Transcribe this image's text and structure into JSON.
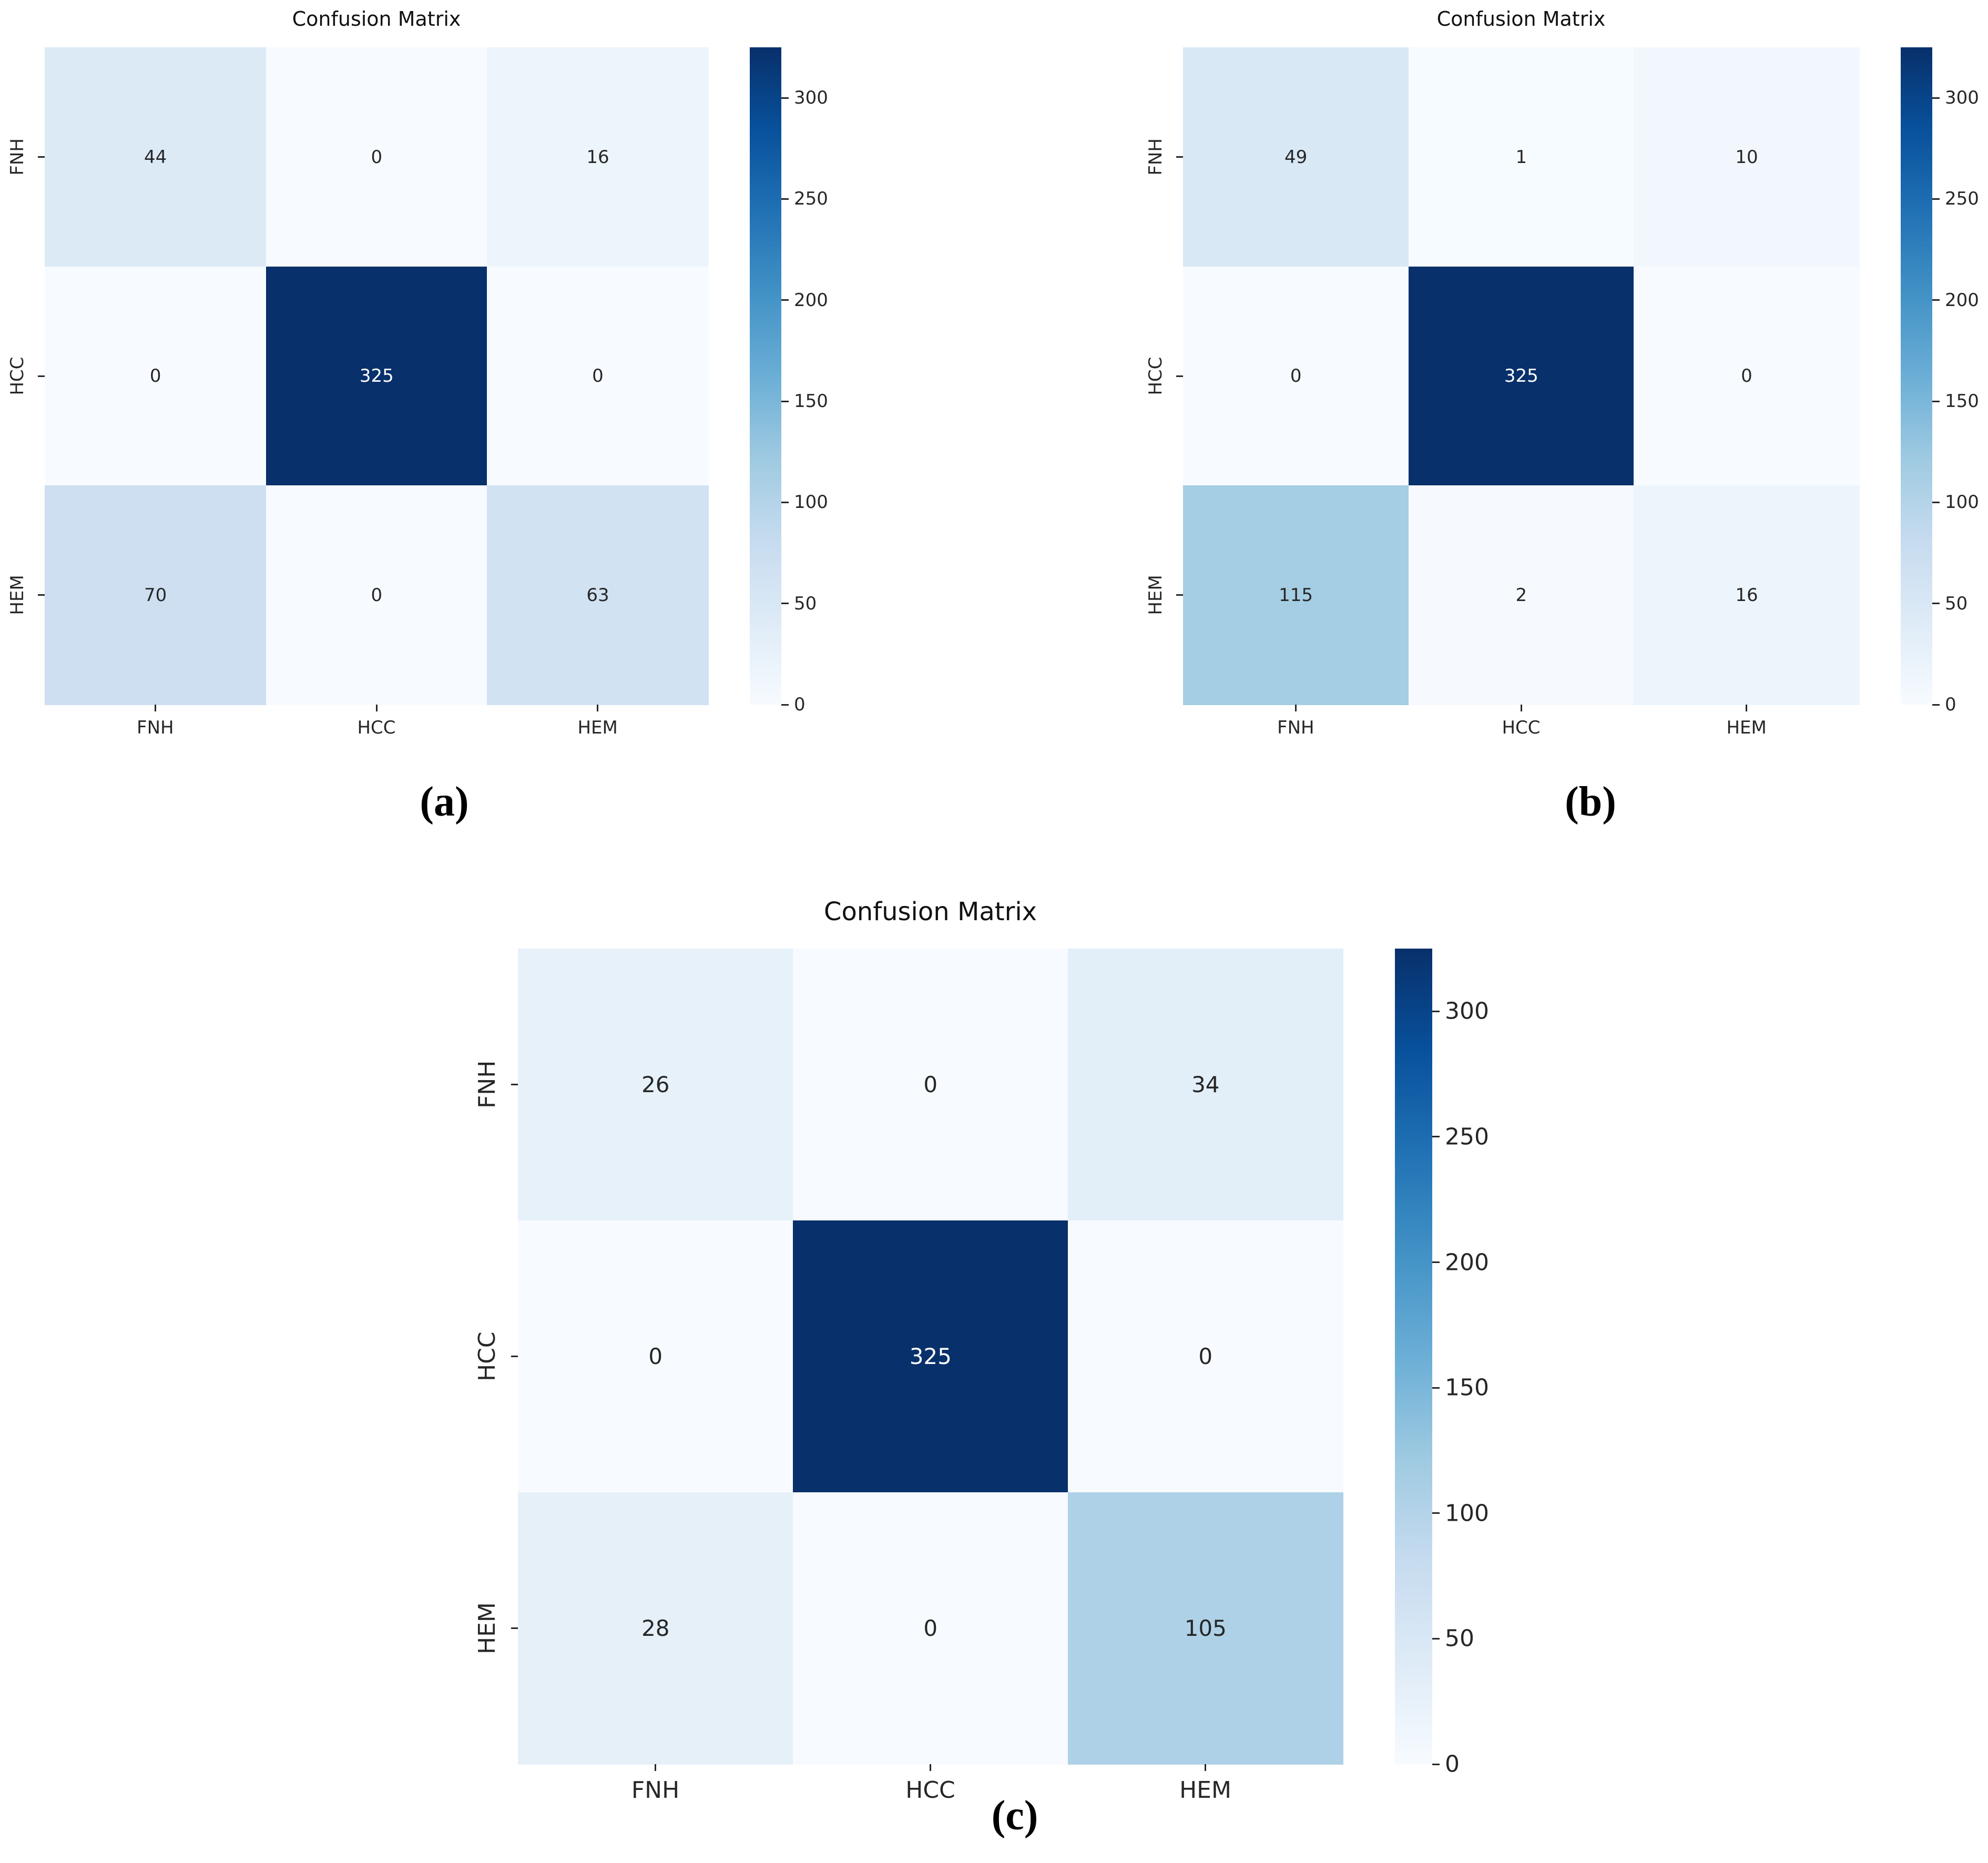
{
  "page": {
    "background": "#ffffff"
  },
  "colors": {
    "colormap": "Blues",
    "colormap_min": "#f7fbff",
    "colormap_max": "#08306b",
    "annotation_dark": "#262626",
    "annotation_light": "#ffffff",
    "axis_text": "#262626",
    "title_text": "#111111"
  },
  "chart_data": [
    {
      "type": "heatmap",
      "panel": "a",
      "caption": "(a)",
      "title": "Confusion Matrix",
      "x_categories": [
        "FNH",
        "HCC",
        "HEM"
      ],
      "y_categories": [
        "FNH",
        "HCC",
        "HEM"
      ],
      "values": [
        [
          44,
          0,
          16
        ],
        [
          0,
          325,
          0
        ],
        [
          70,
          0,
          63
        ]
      ],
      "vmin": 0,
      "vmax": 325,
      "colormap": "Blues",
      "colorbar_ticks": [
        0,
        50,
        100,
        150,
        200,
        250,
        300
      ],
      "legend_position": "right",
      "grid": false
    },
    {
      "type": "heatmap",
      "panel": "b",
      "caption": "(b)",
      "title": "Confusion Matrix",
      "x_categories": [
        "FNH",
        "HCC",
        "HEM"
      ],
      "y_categories": [
        "FNH",
        "HCC",
        "HEM"
      ],
      "values": [
        [
          49,
          1,
          10
        ],
        [
          0,
          325,
          0
        ],
        [
          115,
          2,
          16
        ]
      ],
      "vmin": 0,
      "vmax": 325,
      "colormap": "Blues",
      "colorbar_ticks": [
        0,
        50,
        100,
        150,
        200,
        250,
        300
      ],
      "legend_position": "right",
      "grid": false
    },
    {
      "type": "heatmap",
      "panel": "c",
      "caption": "(c)",
      "title": "Confusion Matrix",
      "x_categories": [
        "FNH",
        "HCC",
        "HEM"
      ],
      "y_categories": [
        "FNH",
        "HCC",
        "HEM"
      ],
      "values": [
        [
          26,
          0,
          34
        ],
        [
          0,
          325,
          0
        ],
        [
          28,
          0,
          105
        ]
      ],
      "vmin": 0,
      "vmax": 325,
      "colormap": "Blues",
      "colorbar_ticks": [
        0,
        50,
        100,
        150,
        200,
        250,
        300
      ],
      "legend_position": "right",
      "grid": false
    }
  ]
}
